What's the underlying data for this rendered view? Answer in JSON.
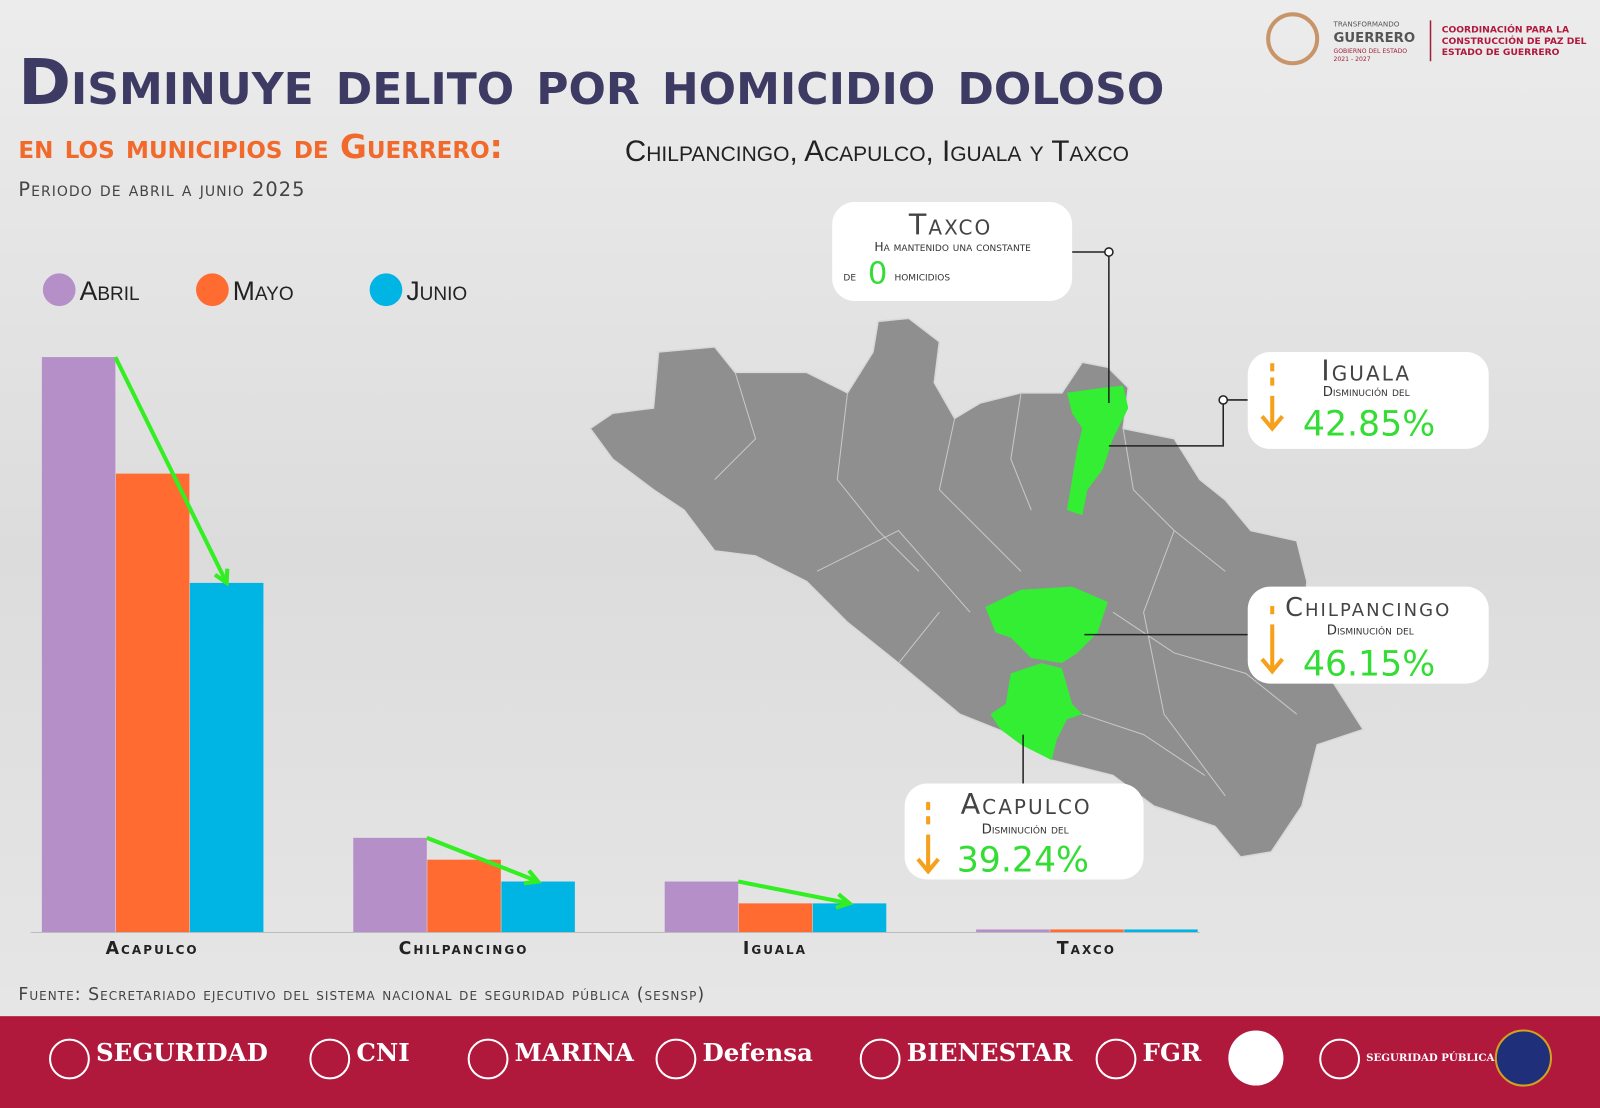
{
  "header": {
    "title": "Disminuye delito por homicidio doloso",
    "subtitle_a": "en los municipios de Guerrero:",
    "subtitle_b": "Chilpancingo, Acapulco, Iguala y Taxco",
    "period": "Periodo de abril a junio 2025",
    "logo_lines": [
      "TRANSFORMANDO",
      "GUERRERO",
      "GOBIERNO DEL ESTADO",
      "2021 - 2027"
    ],
    "coordination": [
      "COORDINACIÓN PARA LA",
      "CONSTRUCCIÓN DE PAZ DEL",
      "ESTADO DE GUERRERO"
    ]
  },
  "chart_data": {
    "type": "bar",
    "categories": [
      "Acapulco",
      "Chilpancingo",
      "Iguala",
      "Taxco"
    ],
    "series": [
      {
        "name": "Abril",
        "color": "#b48fc8",
        "values": [
          79,
          13,
          7,
          0
        ]
      },
      {
        "name": "Mayo",
        "color": "#ff6b30",
        "values": [
          63,
          10,
          4,
          0
        ]
      },
      {
        "name": "Junio",
        "color": "#00b4e4",
        "values": [
          48,
          7,
          4,
          0
        ]
      }
    ]
  },
  "callouts": {
    "taxco": {
      "title": "Taxco",
      "line1": "Ha mantenido una constante",
      "pre": "de",
      "number": "0",
      "post": "homicidios"
    },
    "iguala": {
      "title": "Iguala",
      "line1": "Disminución del",
      "value": "42.85%"
    },
    "chilpancingo": {
      "title": "Chilpancingo",
      "line1": "Disminución del",
      "value": "46.15%"
    },
    "acapulco": {
      "title": "Acapulco",
      "line1": "Disminución del",
      "value": "39.24%"
    }
  },
  "source": "Fuente: Secretariado ejecutivo del sistema nacional de seguridad pública (sesnsp)",
  "footer_logos": [
    "SEGURIDAD",
    "CNI",
    "MARINA",
    "Defensa",
    "BIENESTAR",
    "FGR",
    "SEGURIDAD PÚBLICA"
  ]
}
